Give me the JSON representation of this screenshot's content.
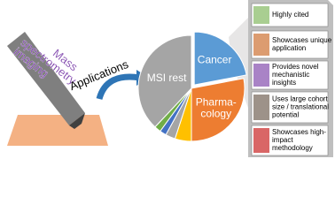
{
  "probe": {
    "lines": [
      "Mass",
      "spectrometry",
      "imaging"
    ]
  },
  "arrow_label": "Applications",
  "pie": {
    "type": "pie",
    "slices": [
      {
        "label": [
          "Cancer"
        ],
        "value": 22,
        "color": "#5b9bd5"
      },
      {
        "label": [
          "Pharma-",
          "cology"
        ],
        "value": 28,
        "color": "#ed7d31"
      },
      {
        "label": null,
        "value": 5,
        "color": "#ffc000"
      },
      {
        "label": null,
        "value": 3,
        "color": "#a5a5a5"
      },
      {
        "label": null,
        "value": 2,
        "color": "#4472c4"
      },
      {
        "label": null,
        "value": 2,
        "color": "#70ad47"
      },
      {
        "label": [
          "MSI rest"
        ],
        "value": 38,
        "color": "#a5a5a5"
      }
    ]
  },
  "criteria": [
    {
      "lines": [
        "Highly cited"
      ]
    },
    {
      "lines": [
        "Showcases unique",
        "application"
      ]
    },
    {
      "lines": [
        "Provides novel",
        "mechanistic",
        "insights"
      ]
    },
    {
      "lines": [
        "Uses large cohort",
        "size / translational",
        "potential"
      ]
    },
    {
      "lines": [
        "Showcases high-",
        "impact",
        "methodology"
      ]
    }
  ]
}
